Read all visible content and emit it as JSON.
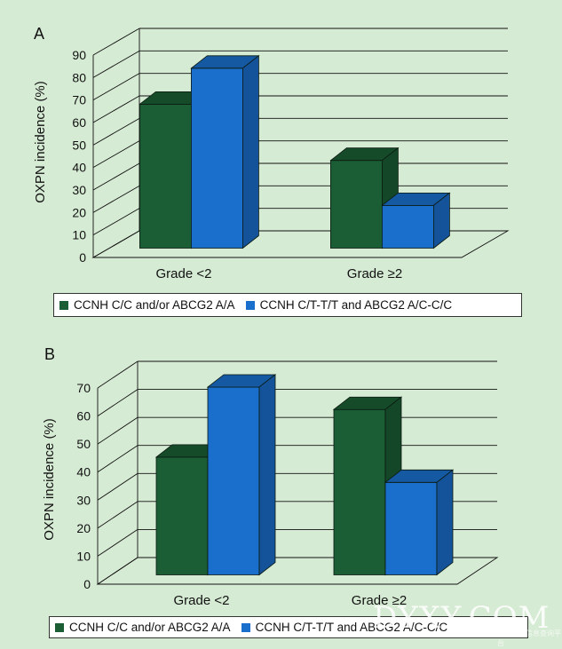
{
  "chart_data": [
    {
      "panel": "A",
      "type": "bar",
      "categories": [
        "Grade <2",
        "Grade ≥2"
      ],
      "series": [
        {
          "name": "CCNH C/C and/or ABCG2 A/A",
          "color": "#1b5e35",
          "values": [
            64,
            39
          ]
        },
        {
          "name": "CCNH C/T-T/T and ABCG2 A/C-C/C",
          "color": "#1a6fcc",
          "values": [
            80,
            19
          ]
        }
      ],
      "ylabel": "OXPN incidence (%)",
      "xlabel": "",
      "ylim": [
        0,
        90
      ],
      "yticks": [
        0,
        10,
        20,
        30,
        40,
        50,
        60,
        70,
        80,
        90
      ],
      "grid": true,
      "legend": "bottom"
    },
    {
      "panel": "B",
      "type": "bar",
      "categories": [
        "Grade <2",
        "Grade ≥2"
      ],
      "series": [
        {
          "name": "CCNH C/C and/or ABCG2 A/A",
          "color": "#1b5e35",
          "values": [
            42,
            59
          ]
        },
        {
          "name": "CCNH C/T-T/T and ABCG2 A/C-C/C",
          "color": "#1a6fcc",
          "values": [
            67,
            33
          ]
        }
      ],
      "ylabel": "OXPN incidence (%)",
      "xlabel": "",
      "ylim": [
        0,
        70
      ],
      "yticks": [
        0,
        10,
        20,
        30,
        40,
        50,
        60,
        70
      ],
      "grid": true,
      "legend": "bottom"
    }
  ],
  "watermark": {
    "text": "DYXY.COM",
    "subtext": "中国医药信息查询平台"
  }
}
